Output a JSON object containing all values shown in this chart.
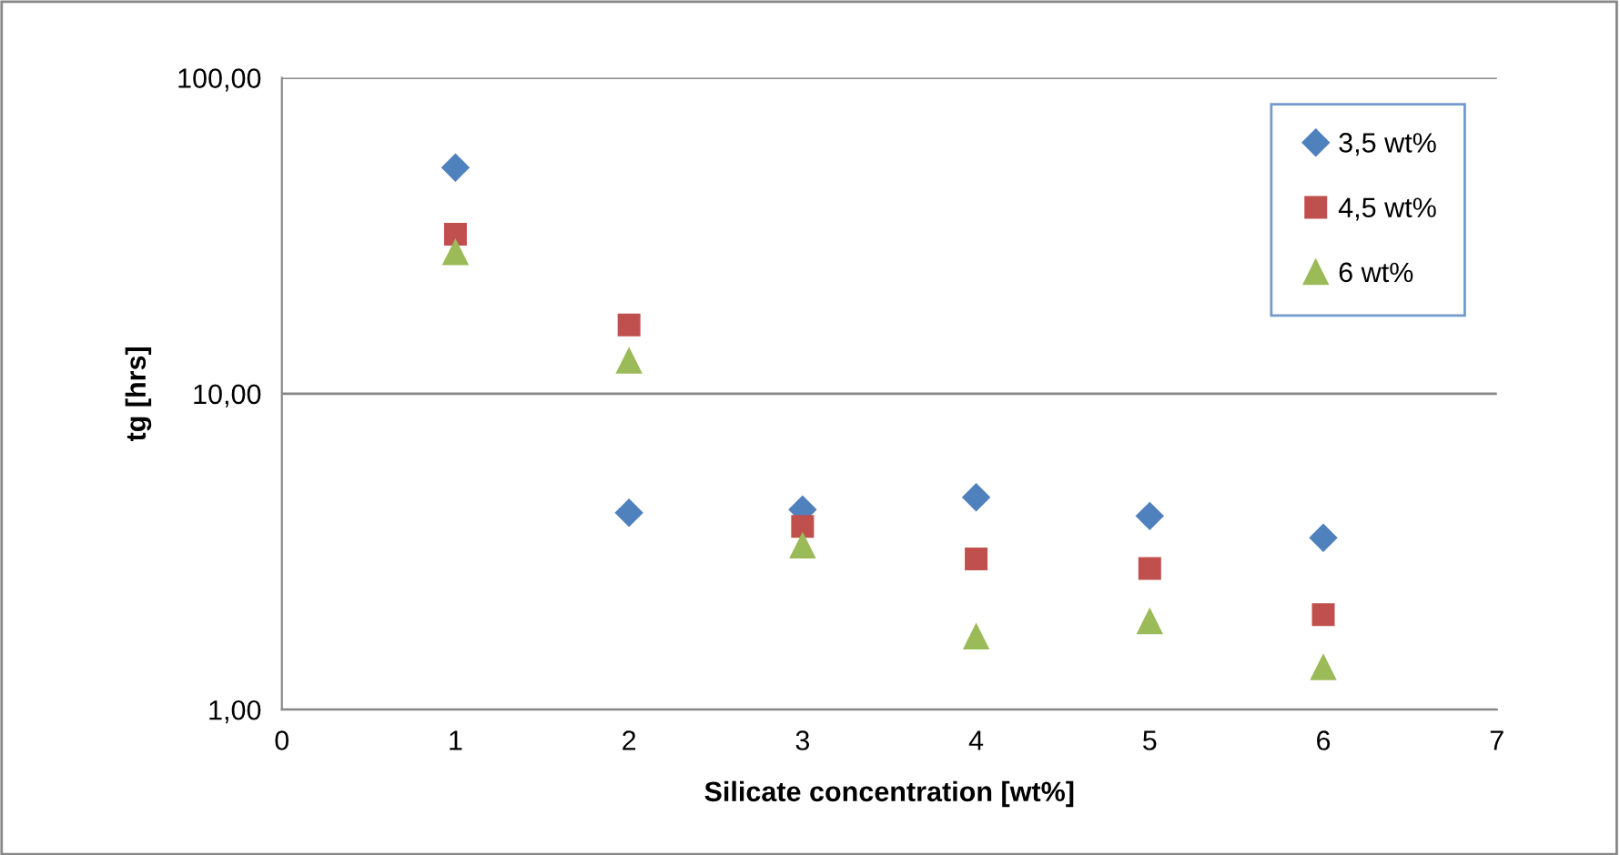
{
  "chart_data": {
    "type": "scatter",
    "xlabel": "Silicate concentration [wt%]",
    "ylabel": "tg [hrs]",
    "x": [
      1,
      2,
      3,
      4,
      5,
      6
    ],
    "series": [
      {
        "name": "3,5 wt%",
        "color": "#4f81bd",
        "marker": "diamond",
        "values": [
          52,
          4.2,
          4.3,
          4.7,
          4.1,
          3.5
        ]
      },
      {
        "name": "4,5 wt%",
        "color": "#c0504d",
        "marker": "square",
        "values": [
          32,
          16.5,
          3.8,
          3.0,
          2.8,
          2.0
        ]
      },
      {
        "name": "6 wt%",
        "color": "#9bbb59",
        "marker": "triangle",
        "values": [
          28,
          12.7,
          3.3,
          1.7,
          1.9,
          1.36
        ]
      }
    ],
    "log": "y",
    "xlim": [
      0,
      7
    ],
    "xticks": [
      0,
      1,
      2,
      3,
      4,
      5,
      6,
      7
    ],
    "ylim": [
      1,
      100
    ],
    "yticks": [
      {
        "value": 1,
        "label": "1,00"
      },
      {
        "value": 10,
        "label": "10,00"
      },
      {
        "value": 100,
        "label": "100,00"
      }
    ],
    "grid": "y",
    "legend": "top right"
  }
}
